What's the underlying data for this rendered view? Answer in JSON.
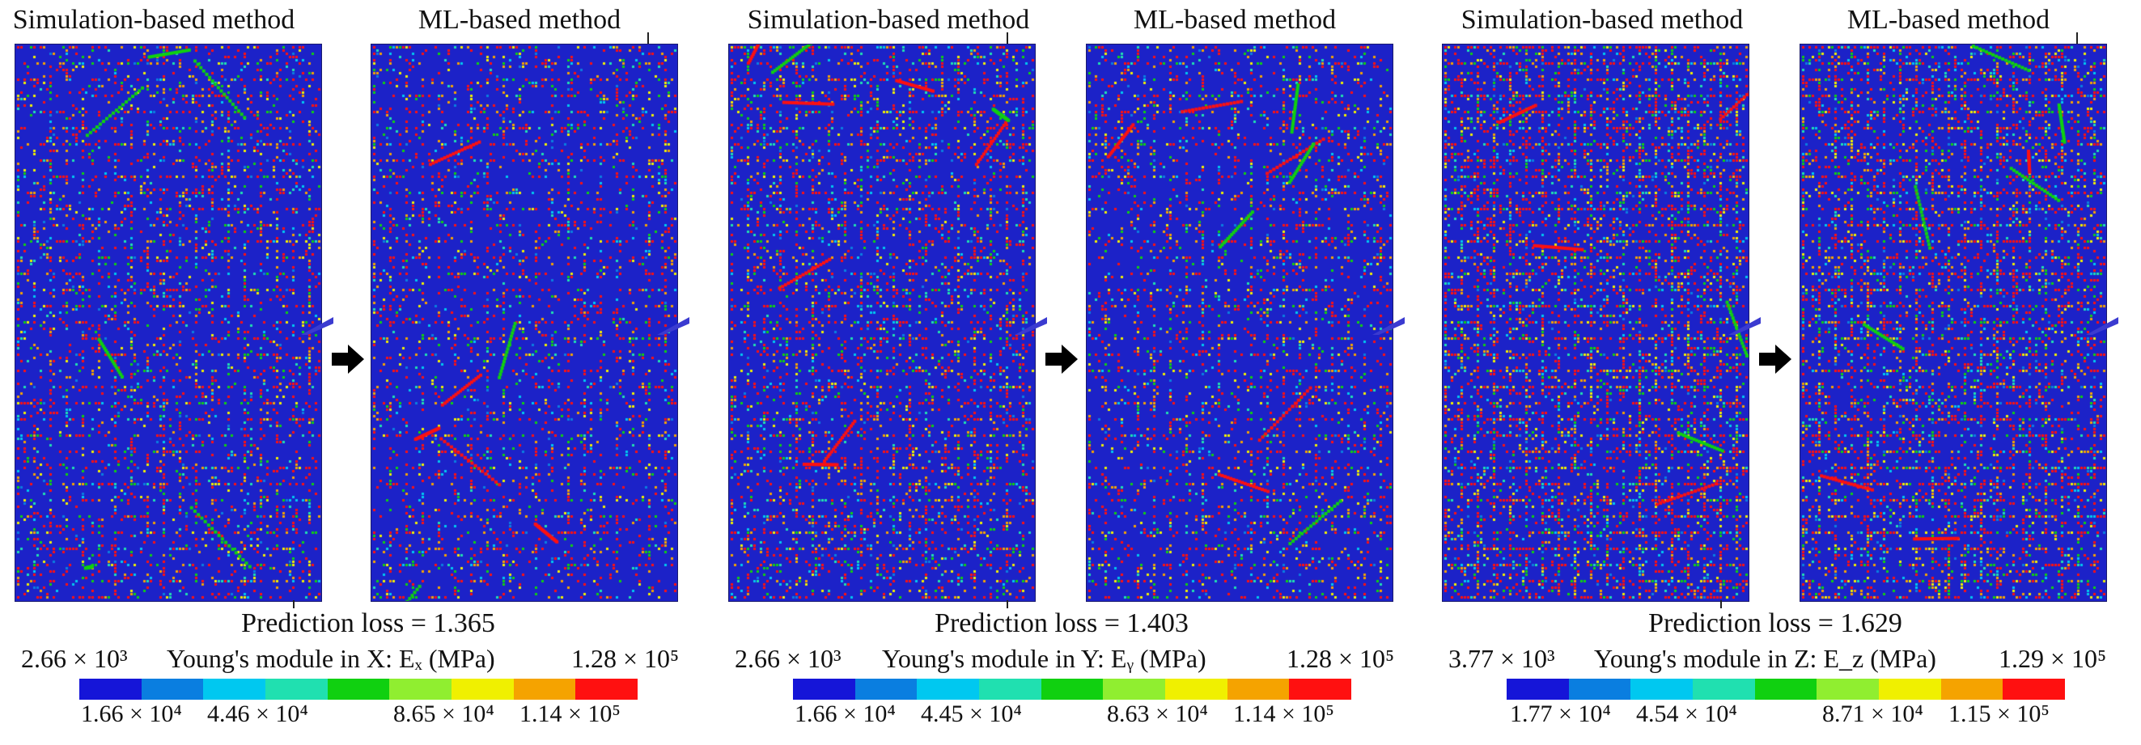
{
  "panels": [
    {
      "title": "Simulation-based method",
      "seed": 11,
      "density": 0.36
    },
    {
      "title": "ML-based method",
      "seed": 23,
      "density": 0.3
    },
    {
      "title": "Simulation-based method",
      "seed": 37,
      "density": 0.4
    },
    {
      "title": "ML-based method",
      "seed": 41,
      "density": 0.32
    },
    {
      "title": "Simulation-based method",
      "seed": 53,
      "density": 0.55
    },
    {
      "title": "ML-based method",
      "seed": 67,
      "density": 0.5
    }
  ],
  "groups": [
    {
      "loss": "Prediction loss = 1.365",
      "min": "2.66 × 10³",
      "max": "1.28 × 10⁵",
      "title": "Young's module in X: Eₓ (MPa)",
      "ticks": [
        "1.66 × 10⁴",
        "4.46 × 10⁴",
        "8.65 × 10⁴",
        "1.14 × 10⁵"
      ]
    },
    {
      "loss": "Prediction loss = 1.403",
      "min": "2.66 × 10³",
      "max": "1.28 × 10⁵",
      "title": "Young's module in Y: Eᵧ (MPa)",
      "ticks": [
        "1.66 × 10⁴",
        "4.45 × 10⁴",
        "8.63 × 10⁴",
        "1.14 × 10⁵"
      ]
    },
    {
      "loss": "Prediction loss = 1.629",
      "min": "3.77 × 10³",
      "max": "1.29 × 10⁵",
      "title": "Young's module in Z: E_z (MPa)",
      "ticks": [
        "1.77 × 10⁴",
        "4.54 × 10⁴",
        "8.71 × 10⁴",
        "1.15 × 10⁵"
      ]
    }
  ],
  "colors": {
    "background": "#1c22c8",
    "colormap": [
      "#1515d8",
      "#0a7ee0",
      "#00c8f0",
      "#20e0b0",
      "#10d010",
      "#90ee30",
      "#f0f000",
      "#f5a300",
      "#ff1010"
    ]
  }
}
